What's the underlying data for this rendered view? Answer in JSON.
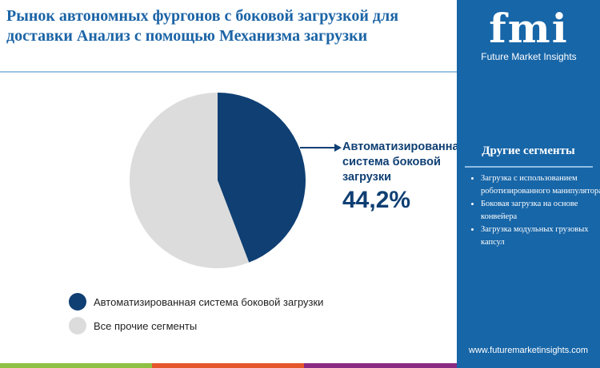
{
  "title": "Рынок автономных фургонов с боковой загрузкой для доставки Анализ с помощью Механизма загрузки",
  "logo": {
    "text": "fmi",
    "subtitle": "Future Market Insights"
  },
  "sidebar": {
    "heading": "Другие сегменты",
    "items": [
      "Загрузка с использованием роботизированного манипулятора",
      "Боковая загрузка на основе конвейера",
      "Загрузка модульных грузовых капсул"
    ],
    "url": "www.futuremarketinsights.com"
  },
  "chart_data": {
    "type": "pie",
    "slices": [
      {
        "name": "Автоматизированная система боковой загрузки",
        "value": 44.2,
        "color": "#0f3f73"
      },
      {
        "name": "Все прочие сегменты",
        "value": 55.8,
        "color": "#dcdcdc"
      }
    ],
    "callout": {
      "label": "Автоматизированная система боковой загрузки",
      "value": "44,2%"
    },
    "legend": "bottom-left"
  },
  "colors": {
    "accent": "#1766a8",
    "bars": [
      "#8dc043",
      "#e5572b",
      "#8a2b83"
    ]
  }
}
